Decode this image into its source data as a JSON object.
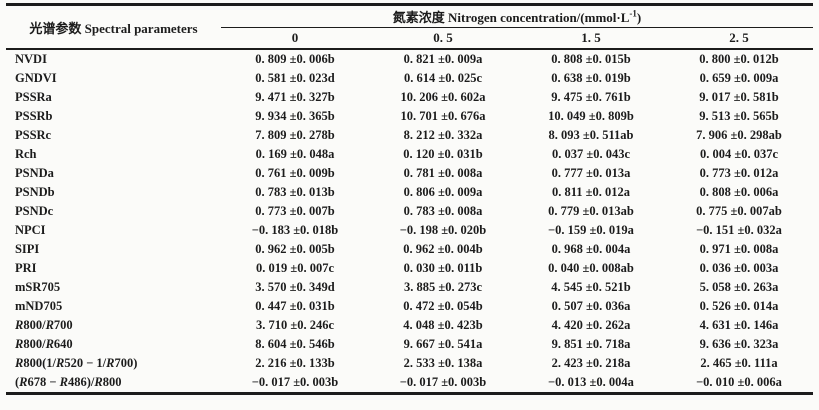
{
  "page": {
    "background": "#fbfbf9",
    "text_color": "#1c1c1c",
    "rule_color": "#1c1c1c"
  },
  "table": {
    "param_header": "光谱参数 Spectral parameters",
    "group_header": {
      "text": "氮素浓度 Nitrogen concentration/(mmol·L",
      "sup": "-1",
      "close": ")"
    },
    "concentration_columns": [
      "0",
      "0. 5",
      "1. 5",
      "2. 5"
    ],
    "rows": [
      {
        "label": "NVDI",
        "italic_r": false,
        "values": [
          "0. 809 ±0. 006b",
          "0. 821 ±0. 009a",
          "0. 808 ±0. 015b",
          "0. 800 ±0. 012b"
        ]
      },
      {
        "label": "GNDVI",
        "italic_r": false,
        "values": [
          "0. 581 ±0. 023d",
          "0. 614 ±0. 025c",
          "0. 638 ±0. 019b",
          "0. 659 ±0. 009a"
        ]
      },
      {
        "label": "PSSRa",
        "italic_r": false,
        "values": [
          "9. 471 ±0. 327b",
          "10. 206 ±0. 602a",
          "9. 475 ±0. 761b",
          "9. 017 ±0. 581b"
        ]
      },
      {
        "label": "PSSRb",
        "italic_r": false,
        "values": [
          "9. 934 ±0. 365b",
          "10. 701 ±0. 676a",
          "10. 049 ±0. 809b",
          "9. 513 ±0. 565b"
        ]
      },
      {
        "label": "PSSRc",
        "italic_r": false,
        "values": [
          "7. 809 ±0. 278b",
          "8. 212 ±0. 332a",
          "8. 093 ±0. 511ab",
          "7. 906 ±0. 298ab"
        ]
      },
      {
        "label": "Rch",
        "italic_r": false,
        "values": [
          "0. 169 ±0. 048a",
          "0. 120 ±0. 031b",
          "0. 037 ±0. 043c",
          "0. 004 ±0. 037c"
        ]
      },
      {
        "label": "PSNDa",
        "italic_r": false,
        "values": [
          "0. 761 ±0. 009b",
          "0. 781 ±0. 008a",
          "0. 777 ±0. 013a",
          "0. 773 ±0. 012a"
        ]
      },
      {
        "label": "PSNDb",
        "italic_r": false,
        "values": [
          "0. 783 ±0. 013b",
          "0. 806 ±0. 009a",
          "0. 811 ±0. 012a",
          "0. 808 ±0. 006a"
        ]
      },
      {
        "label": "PSNDc",
        "italic_r": false,
        "values": [
          "0. 773 ±0. 007b",
          "0. 783 ±0. 008a",
          "0. 779 ±0. 013ab",
          "0. 775 ±0. 007ab"
        ]
      },
      {
        "label": "NPCI",
        "italic_r": false,
        "values": [
          "−0. 183 ±0. 018b",
          "−0. 198 ±0. 020b",
          "−0. 159 ±0. 019a",
          "−0. 151 ±0. 032a"
        ]
      },
      {
        "label": "SIPI",
        "italic_r": false,
        "values": [
          "0. 962 ±0. 005b",
          "0. 962 ±0. 004b",
          "0. 968 ±0. 004a",
          "0. 971 ±0. 008a"
        ]
      },
      {
        "label": "PRI",
        "italic_r": false,
        "values": [
          "0. 019 ±0. 007c",
          "0. 030 ±0. 011b",
          "0. 040 ±0. 008ab",
          "0. 036 ±0. 003a"
        ]
      },
      {
        "label": "mSR705",
        "italic_r": false,
        "values": [
          "3. 570 ±0. 349d",
          "3. 885 ±0. 273c",
          "4. 545 ±0. 521b",
          "5. 058 ±0. 263a"
        ]
      },
      {
        "label": "mND705",
        "italic_r": false,
        "values": [
          "0. 447 ±0. 031b",
          "0. 472 ±0. 054b",
          "0. 507 ±0. 036a",
          "0. 526 ±0. 014a"
        ]
      },
      {
        "label": "R800/R700",
        "italic_r": true,
        "values": [
          "3. 710 ±0. 246c",
          "4. 048 ±0. 423b",
          "4. 420 ±0. 262a",
          "4. 631 ±0. 146a"
        ]
      },
      {
        "label": "R800/R640",
        "italic_r": true,
        "values": [
          "8. 604 ±0. 546b",
          "9. 667 ±0. 541a",
          "9. 851 ±0. 718a",
          "9. 636 ±0. 323a"
        ]
      },
      {
        "label": "R800(1/R520 − 1/R700)",
        "italic_r": true,
        "values": [
          "2. 216 ±0. 133b",
          "2. 533 ±0. 138a",
          "2. 423 ±0. 218a",
          "2. 465 ±0. 111a"
        ]
      },
      {
        "label": "(R678 − R486)/R800",
        "italic_r": true,
        "values": [
          "−0. 017 ±0. 003b",
          "−0. 017 ±0. 003b",
          "−0. 013 ±0. 004a",
          "−0. 010 ±0. 006a"
        ]
      }
    ]
  }
}
